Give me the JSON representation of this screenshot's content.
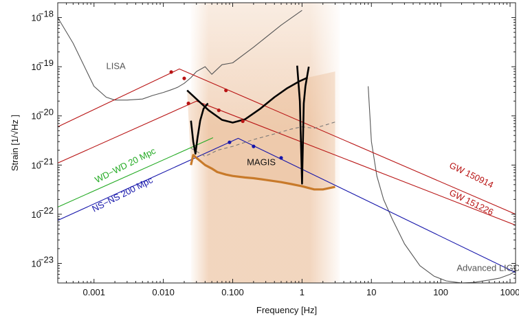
{
  "chart_data": {
    "type": "line",
    "xlabel": "Frequency [Hz]",
    "ylabel": "Strain [1/√Hz ]",
    "x_scale": "log",
    "y_scale": "log",
    "xlim": [
      0.0003,
      1200
    ],
    "ylim": [
      4e-24,
      2e-18
    ],
    "x_ticks": [
      {
        "value": 0.001,
        "label": "0.001"
      },
      {
        "value": 0.01,
        "label": "0.010"
      },
      {
        "value": 0.1,
        "label": "0.100"
      },
      {
        "value": 1,
        "label": "1"
      },
      {
        "value": 10,
        "label": "10"
      },
      {
        "value": 100,
        "label": "100"
      },
      {
        "value": 1000,
        "label": "1000"
      }
    ],
    "y_ticks": [
      {
        "value": 1e-18,
        "base": "10",
        "exp": "−18"
      },
      {
        "value": 1e-19,
        "base": "10",
        "exp": "−19"
      },
      {
        "value": 1e-20,
        "base": "10",
        "exp": "−20"
      },
      {
        "value": 1e-21,
        "base": "10",
        "exp": "−21"
      },
      {
        "value": 1e-22,
        "base": "10",
        "exp": "−22"
      },
      {
        "value": 1e-23,
        "base": "10",
        "exp": "−23"
      }
    ],
    "grid": false,
    "shaded_band": {
      "x": [
        0.025,
        3.5
      ],
      "color": "#e8b48a"
    },
    "series": [
      {
        "name": "LISA",
        "color": "#555555",
        "dash": false,
        "x": [
          0.0003,
          0.0005,
          0.001,
          0.0015,
          0.002,
          0.003,
          0.005,
          0.007,
          0.01,
          0.013,
          0.016,
          0.02,
          0.025,
          0.03,
          0.04,
          0.05,
          0.07,
          0.1,
          0.2,
          0.5,
          1.0
        ],
        "y": [
          1e-18,
          3e-19,
          4e-20,
          2.4e-20,
          2.1e-20,
          2.1e-20,
          2.2e-20,
          2.6e-20,
          3e-20,
          3.4e-20,
          3.8e-20,
          4.6e-20,
          6e-20,
          8e-20,
          1e-19,
          7e-20,
          1.1e-19,
          1.2e-19,
          2.5e-19,
          7e-19,
          1.4e-18
        ]
      },
      {
        "name": "Advanced LIGO",
        "color": "#555555",
        "dash": false,
        "x": [
          9.0,
          10,
          12,
          15,
          20,
          30,
          50,
          80,
          120,
          200,
          300,
          500,
          700,
          1000,
          1200
        ],
        "y": [
          4e-20,
          3e-21,
          6e-22,
          2e-22,
          8e-23,
          2.5e-23,
          9e-24,
          5.5e-24,
          4.4e-24,
          4e-24,
          4.1e-24,
          4.6e-24,
          5e-24,
          6e-24,
          7e-24
        ]
      },
      {
        "name": "GW 150914",
        "color": "#b81414",
        "dash": false,
        "x": [
          0.0003,
          0.017,
          1200
        ],
        "y": [
          6e-21,
          9e-20,
          1e-22
        ],
        "markers": [
          [
            0.013,
            7.8e-20
          ],
          [
            0.02,
            5.8e-20
          ],
          [
            0.08,
            3.3e-20
          ]
        ]
      },
      {
        "name": "GW 151226",
        "color": "#b81414",
        "dash": false,
        "x": [
          0.0003,
          0.03,
          1200
        ],
        "y": [
          1.1e-21,
          2e-20,
          6e-23
        ],
        "markers": [
          [
            0.023,
            1.8e-20
          ],
          [
            0.063,
            1.3e-20
          ],
          [
            0.14,
            7.8e-21
          ]
        ]
      },
      {
        "name": "WD−WD 20 Mpc",
        "color": "#22aa22",
        "dash": false,
        "x": [
          0.0003,
          0.052
        ],
        "y": [
          1.4e-22,
          3.6e-21
        ]
      },
      {
        "name": "NS−NS 200 Mpc",
        "color": "#1515aa",
        "dash": false,
        "x": [
          0.0003,
          0.12,
          1200
        ],
        "y": [
          7.5e-23,
          3.5e-21,
          6.5e-24
        ],
        "markers": [
          [
            0.09,
            2.9e-21
          ],
          [
            0.2,
            2.4e-21
          ],
          [
            0.5,
            1.4e-21
          ]
        ]
      },
      {
        "name": "MAGIS",
        "color": "#c87a2a",
        "dash": false,
        "width": 3.2,
        "x": [
          0.025,
          0.027,
          0.03,
          0.04,
          0.05,
          0.06,
          0.08,
          0.1,
          0.15,
          0.2,
          0.3,
          0.5,
          0.7,
          1.0,
          1.5,
          2.0,
          3.0
        ],
        "y": [
          1e-21,
          1.6e-21,
          1.4e-21,
          1e-21,
          8.5e-22,
          7.2e-22,
          6.4e-22,
          6e-22,
          5.6e-22,
          5.4e-22,
          5e-22,
          4.5e-22,
          4.1e-22,
          3.7e-22,
          3.2e-22,
          3.2e-22,
          3.6e-22
        ]
      },
      {
        "name": "",
        "color": "#777777",
        "dash": true,
        "x": [
          0.025,
          0.04,
          0.06,
          0.1,
          0.2,
          0.4,
          0.7,
          1.0,
          1.5,
          2.0,
          3.0
        ],
        "y": [
          2.2e-21,
          1.5e-21,
          2e-21,
          2.4e-21,
          3.3e-21,
          4.3e-21,
          5.4e-21,
          6e-21,
          5.6e-21,
          6.3e-21,
          7.5e-21
        ]
      },
      {
        "name": "",
        "color": "#000000",
        "dash": false,
        "width": 2.6,
        "x": [
          0.022,
          0.03,
          0.045,
          0.07,
          0.1,
          0.15,
          0.25,
          0.4,
          0.6,
          0.9,
          1.2
        ],
        "y": [
          3.3e-20,
          2.2e-20,
          1.3e-20,
          8.3e-21,
          7.3e-21,
          8.5e-21,
          1.4e-20,
          2.4e-20,
          3.6e-20,
          5e-20,
          6e-20
        ]
      },
      {
        "name": "",
        "color": "#000000",
        "dash": false,
        "width": 2.6,
        "x": [
          0.025,
          0.027,
          0.029,
          0.031,
          0.034,
          0.038,
          0.044
        ],
        "y": [
          8e-21,
          3e-21,
          1.7e-21,
          3.5e-21,
          8e-21,
          1.4e-20,
          1.8e-20
        ]
      },
      {
        "name": "",
        "color": "#000000",
        "dash": false,
        "width": 2.6,
        "x": [
          0.85,
          0.93,
          1.0,
          1.06,
          1.12,
          1.25
        ],
        "y": [
          1.05e-19,
          2e-20,
          4.2e-22,
          1.8e-20,
          4e-20,
          1e-19
        ]
      }
    ],
    "annotations": [
      {
        "text": "LISA",
        "x": 0.0015,
        "y": 9e-20,
        "color": "#555555",
        "size": 13,
        "rotate": 0
      },
      {
        "text": "MAGIS",
        "x": 0.16,
        "y": 1e-21,
        "color": "#111111",
        "size": 15,
        "rotate": 0
      },
      {
        "text": "GW 150914",
        "x": 130,
        "y": 9e-22,
        "color": "#b81414",
        "size": 13,
        "rotate": 26
      },
      {
        "text": "GW 151226",
        "x": 130,
        "y": 2.5e-22,
        "color": "#b81414",
        "size": 13,
        "rotate": 26
      },
      {
        "text": "WD−WD 20 Mpc",
        "x": 0.0011,
        "y": 4.3e-22,
        "color": "#22aa22",
        "size": 13,
        "rotate": -27
      },
      {
        "text": "NS−NS 200 Mpc",
        "x": 0.001,
        "y": 1.1e-22,
        "color": "#1515aa",
        "size": 13,
        "rotate": -27
      },
      {
        "text": "Advanced LIGO",
        "x": 170,
        "y": 7e-24,
        "color": "#555555",
        "size": 13,
        "rotate": 0
      }
    ]
  }
}
